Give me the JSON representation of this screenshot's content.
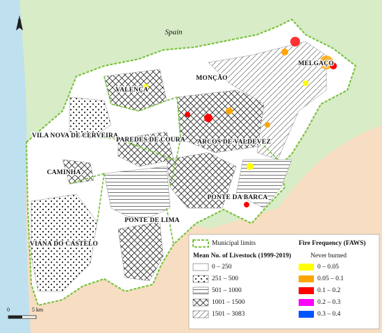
{
  "map": {
    "country_label": "Spain",
    "north": "N",
    "municipalities": [
      {
        "label": "MELGAÇO"
      },
      {
        "label": "MONÇÃO"
      },
      {
        "label": "VALENÇA"
      },
      {
        "label": "VILA NOVA DE CERVEIRA"
      },
      {
        "label": "PAREDES DE COURA"
      },
      {
        "label": "ARCOS DE VALDEVEZ"
      },
      {
        "label": "CAMINHA"
      },
      {
        "label": "PONTE DA BARCA"
      },
      {
        "label": "PONTE DE LIMA"
      },
      {
        "label": "VIANA DO CASTELO"
      }
    ],
    "legend": {
      "boundary": "Municipal limits",
      "livestock_title": "Mean No. of Livestock (1999-2019)",
      "livestock_classes": [
        "0 – 250",
        "251 – 500",
        "501 – 1000",
        "1001 – 1500",
        "1501 – 3083"
      ],
      "fire_title": "Fire Frequency (FAWS)",
      "fire_never": "Never burned",
      "fire_classes": [
        {
          "label": "0 – 0.05",
          "color": "#ffff00"
        },
        {
          "label": "0.05 – 0.1",
          "color": "#ffa500"
        },
        {
          "label": "0.1 – 0.2",
          "color": "#ff0000"
        },
        {
          "label": "0.2 – 0.3",
          "color": "#ff00ff"
        },
        {
          "label": "0.3 – 0.4",
          "color": "#0055ff"
        }
      ]
    },
    "scale": {
      "labels": [
        "0",
        "5 km"
      ]
    }
  }
}
